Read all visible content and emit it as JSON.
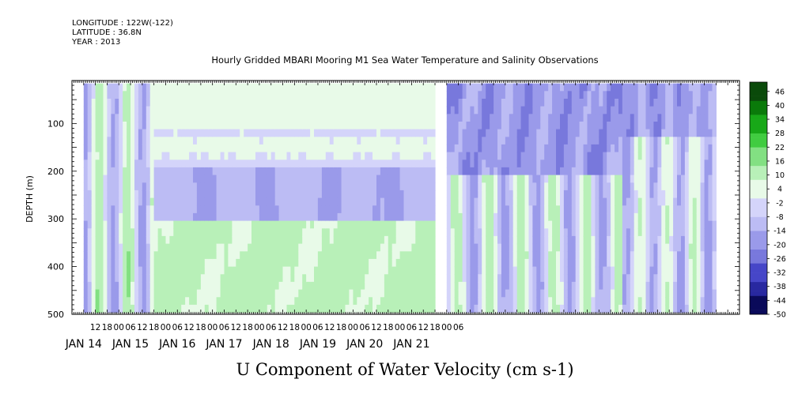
{
  "header": {
    "longitude": "LONGITUDE : 122W(-122)",
    "latitude": "LATITUDE : 36.8N",
    "year": "YEAR : 2013",
    "title": "Hourly Gridded MBARI Mooring M1 Sea Water Temperature and Salinity Observations"
  },
  "chart_data": {
    "type": "heatmap",
    "title": "Hourly Gridded MBARI Mooring M1 Sea Water Temperature and Salinity Observations",
    "xlabel": "U Component of Water Velocity (cm s-1)",
    "ylabel": "DEPTH (m)",
    "x_range_hours": [
      -12,
      330
    ],
    "y_range_depth_m": [
      500,
      10
    ],
    "y_ticks": [
      100,
      200,
      300,
      400,
      500
    ],
    "hour_tick_labels": [
      "12",
      "18",
      "00",
      "06",
      "12",
      "18",
      "00",
      "06",
      "12",
      "18",
      "00",
      "06",
      "12",
      "18",
      "00",
      "06",
      "12",
      "18",
      "00",
      "06",
      "12",
      "18",
      "00",
      "06",
      "12",
      "18",
      "00",
      "06",
      "12",
      "18",
      "00",
      "06"
    ],
    "date_labels": [
      "JAN 14",
      "JAN 15",
      "JAN 16",
      "JAN 17",
      "JAN 18",
      "JAN 19",
      "JAN 20",
      "JAN 21"
    ],
    "colorbar": {
      "min": -50,
      "max": 50,
      "step": 2,
      "labels": [
        "-50",
        "-44",
        "-38",
        "-32",
        "-26",
        "-20",
        "-14",
        "-8",
        "-2",
        "4",
        "10",
        "16",
        "22",
        "28",
        "34",
        "40",
        "46"
      ],
      "colors_negative": [
        "#0a0a5a",
        "#2828a0",
        "#4646c8",
        "#7878dc",
        "#9a9aea",
        "#bcbcf4",
        "#d4d4fa"
      ],
      "colors_positive": [
        "#e8fae8",
        "#b8f0b8",
        "#82e082",
        "#40cc40",
        "#18a818",
        "#0a7a0a",
        "#0a4a0a"
      ]
    },
    "data_gaps_hours": [
      [
        174,
        179
      ]
    ],
    "data_end_hour": 318,
    "regimes": [
      {
        "label": "JAN 14-15",
        "start_hour": -6,
        "end_hour": 30,
        "pattern": "alternating negative and positive columns, magnitude about 4-20"
      },
      {
        "label": "JAN 16-17",
        "start_hour": 30,
        "end_hour": 174,
        "pattern": "layered: upper 0-100 m weak positive, 180-300 m negative around -14, 300-490 m positive around 10"
      },
      {
        "label": "JAN 18-19",
        "start_hour": 179,
        "end_hour": 270,
        "pattern": "upper 0-200 m negative around -20, below alternating columns"
      },
      {
        "label": "JAN 20-21",
        "start_hour": 270,
        "end_hour": 318,
        "pattern": "mixed columns, surface negative"
      }
    ]
  }
}
